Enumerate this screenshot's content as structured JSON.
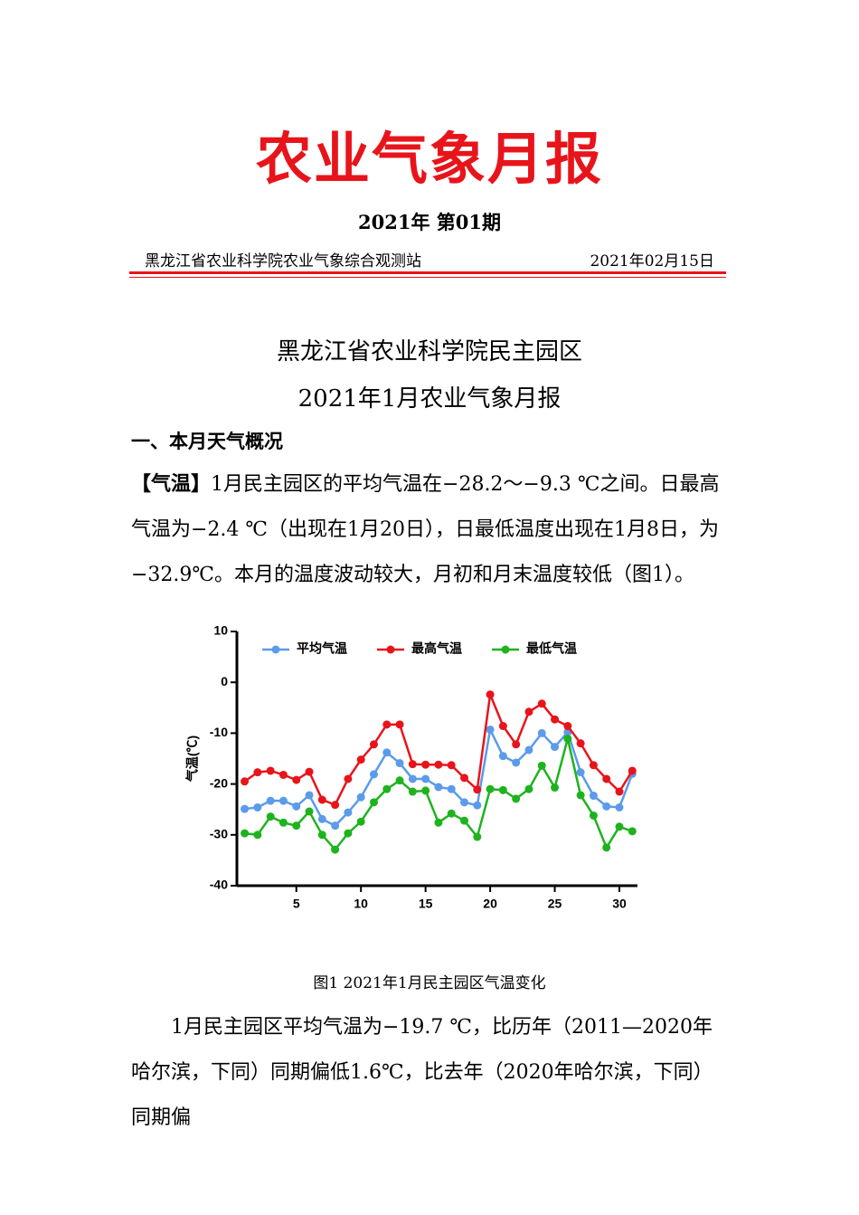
{
  "header": {
    "title": "农业气象月报",
    "issue": "2021年 第01期",
    "organization": "黑龙江省农业科学院农业气象综合观测站",
    "date": "2021年02月15日"
  },
  "report_title": [
    "黑龙江省农业科学院民主园区",
    "2021年1月农业气象月报"
  ],
  "section_heading": "一、本月天气概况",
  "paragraph1": {
    "label": "【气温】",
    "text": "1月民主园区的平均气温在−28.2～−9.3 ℃之间。日最高气温为−2.4 ℃（出现在1月20日），日最低温度出现在1月8日，为−32.9℃。本月的温度波动较大，月初和月末温度较低（图1）。"
  },
  "figure_caption": "图1 2021年1月民主园区气温变化",
  "paragraph2": "1月民主园区平均气温为−19.7 ℃，比历年（2011—2020年哈尔滨，下同）同期偏低1.6℃，比去年（2020年哈尔滨，下同）同期偏",
  "chart_data": {
    "type": "line",
    "y_label": "气温(℃)",
    "x": [
      1,
      2,
      3,
      4,
      5,
      6,
      7,
      8,
      9,
      10,
      11,
      12,
      13,
      14,
      15,
      16,
      17,
      18,
      19,
      20,
      21,
      22,
      23,
      24,
      25,
      26,
      27,
      28,
      29,
      30,
      31
    ],
    "series": [
      {
        "name": "平均气温",
        "color": "#5b9bea",
        "values": [
          -24.9,
          -24.6,
          -23.3,
          -23.3,
          -24.4,
          -22.2,
          -26.9,
          -28.2,
          -25.6,
          -22.6,
          -18.1,
          -13.8,
          -15.9,
          -19.0,
          -19.0,
          -20.6,
          -21.0,
          -23.6,
          -24.2,
          -9.3,
          -14.5,
          -15.8,
          -13.3,
          -10.0,
          -12.7,
          -9.8,
          -17.7,
          -22.3,
          -24.4,
          -24.6,
          -18.0
        ]
      },
      {
        "name": "最高气温",
        "color": "#e8141b",
        "values": [
          -19.5,
          -17.7,
          -17.4,
          -18.2,
          -19.2,
          -17.6,
          -23.1,
          -24.1,
          -19.0,
          -15.2,
          -12.2,
          -8.3,
          -8.3,
          -16.1,
          -16.2,
          -16.2,
          -16.3,
          -18.8,
          -21.1,
          -2.4,
          -8.6,
          -12.2,
          -5.8,
          -4.2,
          -7.3,
          -8.6,
          -12.0,
          -16.3,
          -19.0,
          -21.5,
          -17.4
        ]
      },
      {
        "name": "最低气温",
        "color": "#1eb31e",
        "values": [
          -29.7,
          -30.0,
          -26.4,
          -27.6,
          -28.2,
          -25.4,
          -30.0,
          -32.9,
          -29.7,
          -27.4,
          -23.6,
          -21.0,
          -19.3,
          -21.5,
          -21.3,
          -27.6,
          -25.8,
          -27.2,
          -30.4,
          -21.0,
          -21.2,
          -22.9,
          -21.0,
          -16.4,
          -20.7,
          -11.1,
          -22.2,
          -26.2,
          -32.5,
          -28.4,
          -29.3
        ]
      }
    ],
    "xlim": [
      0.4,
      31.4
    ],
    "xticks": [
      5,
      10,
      15,
      20,
      25,
      30
    ],
    "ylim": [
      -40,
      10
    ],
    "yticks": [
      10,
      0,
      -10,
      -20,
      -30,
      -40
    ],
    "grid": false
  }
}
